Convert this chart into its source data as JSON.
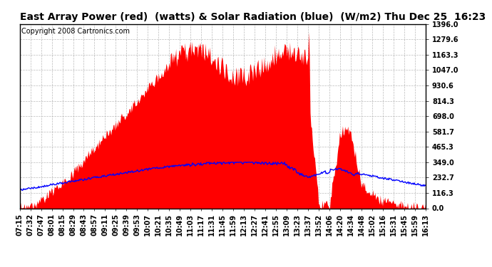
{
  "title": "East Array Power (red)  (watts) & Solar Radiation (blue)  (W/m2) Thu Dec 25  16:23",
  "copyright": "Copyright 2008 Cartronics.com",
  "ymin": 0.0,
  "ymax": 1396.0,
  "yticks": [
    0.0,
    116.3,
    232.7,
    349.0,
    465.3,
    581.7,
    698.0,
    814.3,
    930.6,
    1047.0,
    1163.3,
    1279.6,
    1396.0
  ],
  "ytick_labels": [
    "0.0",
    "116.3",
    "232.7",
    "349.0",
    "465.3",
    "581.7",
    "698.0",
    "814.3",
    "930.6",
    "1047.0",
    "1163.3",
    "1279.6",
    "1396.0"
  ],
  "xtick_labels": [
    "07:15",
    "07:32",
    "07:47",
    "08:01",
    "08:15",
    "08:29",
    "08:43",
    "08:57",
    "09:11",
    "09:25",
    "09:39",
    "09:53",
    "10:07",
    "10:21",
    "10:35",
    "10:49",
    "11:03",
    "11:17",
    "11:31",
    "11:45",
    "11:59",
    "12:13",
    "12:27",
    "12:41",
    "12:55",
    "13:09",
    "13:23",
    "13:37",
    "13:52",
    "14:06",
    "14:20",
    "14:34",
    "14:48",
    "15:02",
    "15:16",
    "15:31",
    "15:45",
    "15:59",
    "16:13"
  ],
  "bg_color": "#ffffff",
  "plot_bg_color": "#ffffff",
  "grid_color": "#aaaaaa",
  "red_color": "#ff0000",
  "blue_color": "#0000ff",
  "title_fontsize": 10,
  "copyright_fontsize": 7,
  "tick_fontsize": 7
}
